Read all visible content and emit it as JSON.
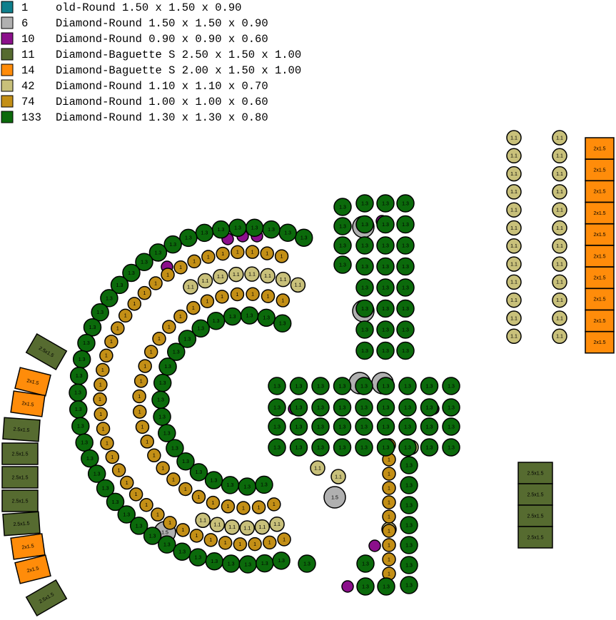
{
  "legend": {
    "items": [
      {
        "color": "#0e7f8c",
        "count": 1,
        "description": "old-Round  1.50 x 1.50 x 0.90"
      },
      {
        "color": "#b0b0b0",
        "count": 6,
        "description": "Diamond-Round 1.50 x 1.50 x 0.90",
        "stone_label": "1.5"
      },
      {
        "color": "#8b0f8b",
        "count": 10,
        "description": "Diamond-Round 0.90 x 0.90 x 0.60"
      },
      {
        "color": "#566b30",
        "count": 11,
        "description": "Diamond-Baguette S 2.50 x 1.50 x 1.00",
        "stone_label": "2.5x1.5"
      },
      {
        "color": "#ff8c0a",
        "count": 14,
        "description": "Diamond-Baguette S 2.00 x 1.50 x 1.00",
        "stone_label": "2x1.5"
      },
      {
        "color": "#c8c07a",
        "count": 42,
        "description": "Diamond-Round 1.10 x 1.10 x 0.70",
        "stone_label": "1.1"
      },
      {
        "color": "#c38f16",
        "count": 74,
        "description": "Diamond-Round 1.00 x 1.00 x 0.60",
        "stone_label": "1"
      },
      {
        "color": "#0b6a0b",
        "count": 133,
        "description": "Diamond-Round 1.30 x 1.30 x 0.80",
        "stone_label": "1.3"
      }
    ]
  }
}
